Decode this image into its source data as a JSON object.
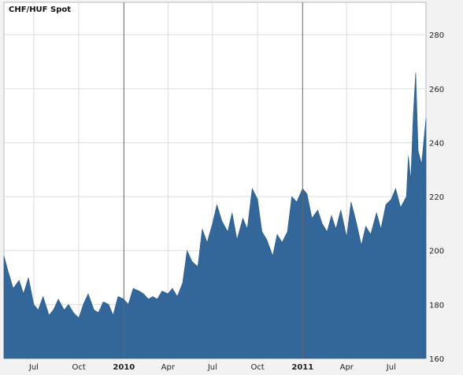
{
  "chart_data": {
    "type": "area",
    "title": "CHF/HUF Spot",
    "xlabel": "",
    "ylabel": "",
    "x_ticks": [
      {
        "label": "Jul",
        "date": "2009-07-01",
        "bold": false
      },
      {
        "label": "Oct",
        "date": "2009-10-01",
        "bold": false
      },
      {
        "label": "2010",
        "date": "2010-01-01",
        "bold": true
      },
      {
        "label": "Apr",
        "date": "2010-04-01",
        "bold": false
      },
      {
        "label": "Jul",
        "date": "2010-07-01",
        "bold": false
      },
      {
        "label": "Oct",
        "date": "2010-10-01",
        "bold": false
      },
      {
        "label": "2011",
        "date": "2011-01-01",
        "bold": true
      },
      {
        "label": "Apr",
        "date": "2011-04-01",
        "bold": false
      },
      {
        "label": "Jul",
        "date": "2011-07-01",
        "bold": false
      }
    ],
    "y_ticks": [
      160,
      180,
      200,
      220,
      240,
      260,
      280
    ],
    "xlim": [
      "2009-05-01",
      "2011-09-10"
    ],
    "ylim": [
      160,
      292
    ],
    "grid": true,
    "fill_color": "#336699",
    "series": [
      {
        "x": [
          "2009-05-01",
          "2009-05-10",
          "2009-05-20",
          "2009-06-01",
          "2009-06-10",
          "2009-06-20",
          "2009-07-01",
          "2009-07-10",
          "2009-07-20",
          "2009-08-01",
          "2009-08-10",
          "2009-08-20",
          "2009-09-01",
          "2009-09-10",
          "2009-09-20",
          "2009-10-01",
          "2009-10-10",
          "2009-10-20",
          "2009-11-01",
          "2009-11-10",
          "2009-11-20",
          "2009-12-01",
          "2009-12-10",
          "2009-12-20",
          "2010-01-01",
          "2010-01-10",
          "2010-01-20",
          "2010-02-01",
          "2010-02-10",
          "2010-02-20",
          "2010-03-01",
          "2010-03-10",
          "2010-03-20",
          "2010-04-01",
          "2010-04-10",
          "2010-04-20",
          "2010-05-01",
          "2010-05-10",
          "2010-05-20",
          "2010-06-01",
          "2010-06-10",
          "2010-06-20",
          "2010-07-01",
          "2010-07-10",
          "2010-07-20",
          "2010-08-01",
          "2010-08-10",
          "2010-08-20",
          "2010-09-01",
          "2010-09-10",
          "2010-09-20",
          "2010-10-01",
          "2010-10-10",
          "2010-10-20",
          "2010-11-01",
          "2010-11-10",
          "2010-11-20",
          "2010-12-01",
          "2010-12-10",
          "2010-12-20",
          "2011-01-01",
          "2011-01-10",
          "2011-01-20",
          "2011-02-01",
          "2011-02-10",
          "2011-02-20",
          "2011-03-01",
          "2011-03-10",
          "2011-03-20",
          "2011-04-01",
          "2011-04-10",
          "2011-04-20",
          "2011-05-01",
          "2011-05-10",
          "2011-05-20",
          "2011-06-01",
          "2011-06-10",
          "2011-06-20",
          "2011-07-01",
          "2011-07-10",
          "2011-07-20",
          "2011-08-01",
          "2011-08-05",
          "2011-08-10",
          "2011-08-15",
          "2011-08-20",
          "2011-08-25",
          "2011-09-01",
          "2011-09-10"
        ],
        "y": [
          198,
          192,
          186,
          189,
          184,
          190,
          180,
          178,
          183,
          176,
          178,
          182,
          178,
          180,
          177,
          175,
          180,
          184,
          178,
          177,
          181,
          180,
          176,
          183,
          182,
          180,
          186,
          185,
          184,
          182,
          183,
          182,
          185,
          184,
          186,
          183,
          188,
          200,
          196,
          194,
          208,
          203,
          210,
          217,
          211,
          207,
          214,
          204,
          212,
          208,
          223,
          219,
          207,
          204,
          198,
          206,
          203,
          207,
          220,
          218,
          223,
          221,
          212,
          215,
          210,
          207,
          213,
          208,
          215,
          205,
          218,
          211,
          202,
          209,
          206,
          214,
          208,
          217,
          219,
          223,
          216,
          220,
          235,
          226,
          250,
          266,
          237,
          232,
          249
        ]
      }
    ]
  }
}
